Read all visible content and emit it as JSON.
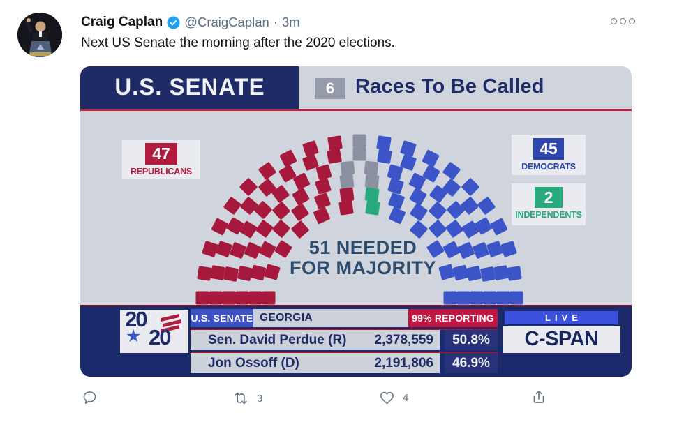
{
  "tweet": {
    "author": {
      "name": "Craig Caplan",
      "handle": "@CraigCaplan",
      "separator": "·",
      "time": "3m"
    },
    "text": "Next US Senate the morning after the 2020 elections.",
    "actions": {
      "retweet_count": "3",
      "like_count": "4"
    }
  },
  "graphic": {
    "header": {
      "title": "U.S. SENATE",
      "races_count": "6",
      "races_label": "Races To Be Called"
    },
    "majority": {
      "line1": "51 NEEDED",
      "line2": "FOR MAJORITY"
    },
    "party_cards": [
      {
        "count": "47",
        "label": "REPUBLICANS",
        "color": "#b01b3e"
      },
      {
        "count": "45",
        "label": "DEMOCRATS",
        "color": "#2e46ae"
      },
      {
        "count": "2",
        "label": "INDEPENDENTS",
        "color": "#27a97d"
      }
    ],
    "ticker": {
      "logo": {
        "top": "20",
        "bottom": "20",
        "star": "★"
      },
      "race": "U.S. SENATE",
      "location": "GEORGIA",
      "reporting": "99% REPORTING",
      "results": [
        {
          "name": "Sen. David Perdue (R)",
          "votes": "2,378,559",
          "pct": "50.8%"
        },
        {
          "name": "Jon Ossoff (D)",
          "votes": "2,191,806",
          "pct": "46.9%"
        }
      ],
      "live_label": "LIVE",
      "network": "C-SPAN"
    }
  },
  "chart_data": {
    "type": "parliament",
    "title": "U.S. SENATE",
    "total_seats": 100,
    "majority_needed": 51,
    "series": [
      {
        "name": "Republicans",
        "seats": 47,
        "color": "#a6193d"
      },
      {
        "name": "Democrats",
        "seats": 45,
        "color": "#3b54c7"
      },
      {
        "name": "Independents",
        "seats": 2,
        "color": "#27a97d"
      },
      {
        "name": "Races To Be Called",
        "seats": 6,
        "color": "#8b91a0"
      }
    ],
    "layout": {
      "shape": "hemicycle",
      "rows": [
        12,
        14,
        16,
        18,
        19,
        21
      ]
    }
  }
}
